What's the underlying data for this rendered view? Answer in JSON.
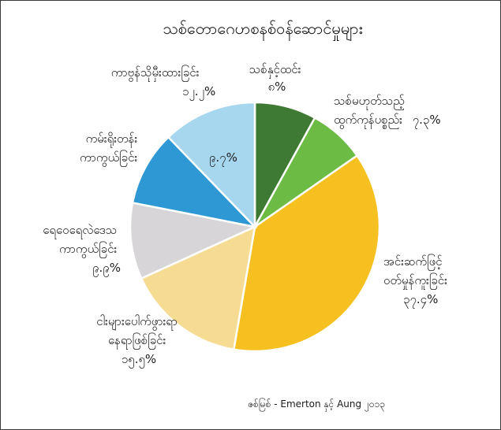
{
  "chart_data": {
    "type": "pie",
    "title": "သစ်တောဂေဟစနစ်ဝန်ဆောင်မှုများ",
    "source": "ဇစ်မြစ် - Emerton နှင့် Aung ၂၀၁၃",
    "slices": [
      {
        "name": "သစ်နှင့်ထင်း",
        "value_label": "၈%",
        "value": 8,
        "color": "#3e7a34"
      },
      {
        "name": "သစ်မဟုတ်သည့် ထွက်ကုန်ပစ္စည်း",
        "value_label": "၇.၃%",
        "value": 7.3,
        "color": "#6cbb45"
      },
      {
        "name": "အင်းဆက်ဖြင့် ဝတ်မှုန်ကူးခြင်း",
        "value_label": "၃၇.၄%",
        "value": 37.4,
        "color": "#f6c021"
      },
      {
        "name": "ငါးများပေါက်ဖွားရာ နေရာဖြစ်ခြင်း",
        "value_label": "၁၅.၅%",
        "value": 15.5,
        "color": "#f6dc93"
      },
      {
        "name": "ရေဝေရေလဲဒေသ ကာကွယ်ခြင်း",
        "value_label": "၉.၉%",
        "value": 9.9,
        "color": "#d7d5d7"
      },
      {
        "name": "ကမ်းရိုးတန်း ကာကွယ်ခြင်း",
        "value_label": "၉.၇%",
        "value": 9.7,
        "color": "#2d98d3"
      },
      {
        "name": "ကာဗွန်သိုမှီးထားခြင်း",
        "value_label": "၁၂.၂%",
        "value": 12.2,
        "color": "#a7d7ef"
      }
    ]
  }
}
